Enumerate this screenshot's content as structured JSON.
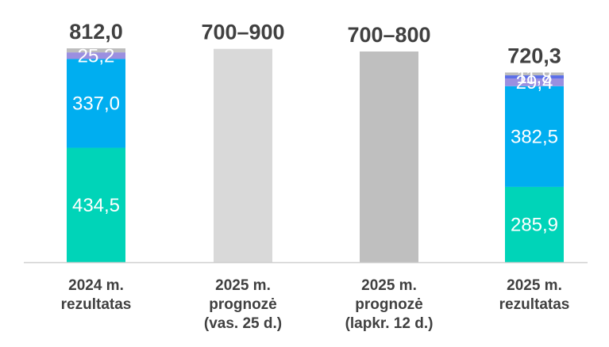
{
  "chart_data": {
    "type": "bar",
    "stacked": true,
    "ylim": [
      0,
      860
    ],
    "grid": false,
    "legend": "none",
    "categories": [
      {
        "label_lines": [
          "2024 m.",
          "rezultatas"
        ],
        "total_label": "812,0",
        "kind": "stack"
      },
      {
        "label_lines": [
          "2025 m.",
          "prognozė",
          "(vas. 25 d.)"
        ],
        "total_label": "700–900",
        "kind": "range",
        "range": [
          0,
          810
        ]
      },
      {
        "label_lines": [
          "2025 m.",
          "prognozė",
          "(lapkr. 12 d.)"
        ],
        "total_label": "700–800",
        "kind": "range",
        "range": [
          0,
          800
        ]
      },
      {
        "label_lines": [
          "2025 m.",
          "rezultatas"
        ],
        "total_label": "720,3",
        "kind": "stack"
      }
    ],
    "series": [
      {
        "color": "#00d4b8",
        "values": [
          434.5,
          null,
          null,
          285.9
        ],
        "labels": [
          "434,5",
          "",
          "",
          "285,9"
        ]
      },
      {
        "color": "#00aef0",
        "values": [
          337.0,
          null,
          null,
          382.5
        ],
        "labels": [
          "337,0",
          "",
          "",
          "382,5"
        ]
      },
      {
        "color": "#9b8fe0",
        "values": [
          25.2,
          null,
          null,
          29.4
        ],
        "labels": [
          "25,2",
          "",
          "",
          "29,4"
        ]
      },
      {
        "color": "#5a6ee8",
        "values": [
          0,
          null,
          null,
          11.8
        ],
        "labels": [
          "",
          "",
          "",
          "11,8"
        ]
      },
      {
        "color": "#bdbdbd",
        "values": [
          15.3,
          null,
          null,
          10.7
        ],
        "labels": [
          "",
          "",
          "",
          ""
        ]
      }
    ],
    "range_colors": [
      "#d9d9d9",
      "#bfbfbf"
    ]
  }
}
